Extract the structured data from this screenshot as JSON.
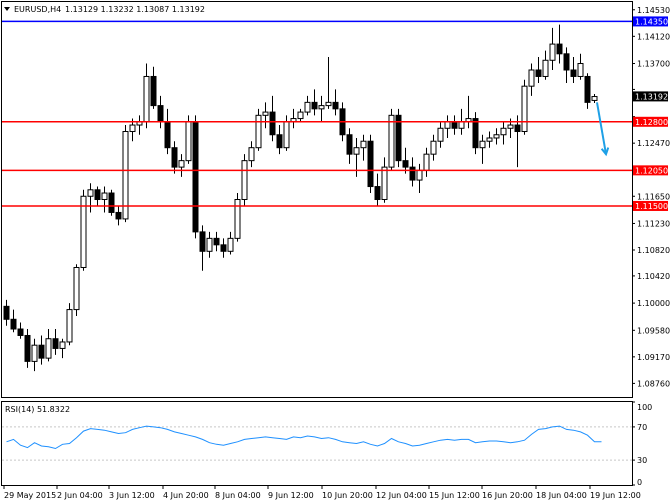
{
  "header": {
    "symbol": "EURUSD,H4",
    "ohlc": "1.13129 1.13232 1.13087 1.13192"
  },
  "rsi_header": "RSI(14) 51.8322",
  "colors": {
    "background": "#ffffff",
    "bull_candle": "#ffffff",
    "bear_candle": "#000000",
    "level_line": "#ff0000",
    "top_line": "#0000ff",
    "rsi_line": "#1e90ff",
    "arrow": "#1ea0e6",
    "grid": "#c8c8c8",
    "current_price_badge": "#000000"
  },
  "chart_data": [
    {
      "type": "candlestick",
      "title": "EURUSD,H4",
      "ylim": [
        1.0855,
        1.1465
      ],
      "y_ticks": [
        "1.14530",
        "1.14120",
        "1.13700",
        "1.13300",
        "1.12880",
        "1.12470",
        "1.12050",
        "1.11650",
        "1.11230",
        "1.10820",
        "1.10420",
        "1.10000",
        "1.09580",
        "1.09170",
        "1.08760"
      ],
      "x_ticks": [
        "29 May 2015",
        "2 Jun 04:00",
        "3 Jun 12:00",
        "4 Jun 20:00",
        "8 Jun 04:00",
        "9 Jun 12:00",
        "10 Jun 20:00",
        "12 Jun 04:00",
        "15 Jun 12:00",
        "16 Jun 20:00",
        "18 Jun 04:00",
        "19 Jun 12:00"
      ],
      "horizontal_levels": [
        {
          "value": 1.1435,
          "label": "1.14350",
          "color": "#0000ff"
        },
        {
          "value": 1.128,
          "label": "1.12800",
          "color": "#ff0000"
        },
        {
          "value": 1.1205,
          "label": "1.12050",
          "color": "#ff0000"
        },
        {
          "value": 1.115,
          "label": "1.11500",
          "color": "#ff0000"
        }
      ],
      "current_price": {
        "value": 1.13192,
        "label": "1.13192"
      },
      "arrow": {
        "from": [
          84,
          1.131
        ],
        "to": [
          86,
          1.123
        ]
      },
      "candles": [
        [
          1.0995,
          1.1005,
          1.0965,
          1.0975
        ],
        [
          1.0975,
          1.099,
          1.0955,
          1.096
        ],
        [
          1.096,
          1.097,
          1.0945,
          1.095
        ],
        [
          1.095,
          1.096,
          1.09,
          1.091
        ],
        [
          1.091,
          1.0945,
          1.0895,
          1.0935
        ],
        [
          1.0935,
          1.095,
          1.0905,
          1.0915
        ],
        [
          1.0915,
          1.096,
          1.091,
          1.0945
        ],
        [
          1.0945,
          1.096,
          1.092,
          1.093
        ],
        [
          1.093,
          1.0945,
          1.0915,
          1.094
        ],
        [
          1.094,
          1.1,
          1.0935,
          1.099
        ],
        [
          1.099,
          1.106,
          1.098,
          1.1055
        ],
        [
          1.1055,
          1.1175,
          1.105,
          1.1165
        ],
        [
          1.1165,
          1.1185,
          1.114,
          1.1175
        ],
        [
          1.1175,
          1.118,
          1.115,
          1.116
        ],
        [
          1.116,
          1.118,
          1.114,
          1.117
        ],
        [
          1.117,
          1.1175,
          1.1135,
          1.114
        ],
        [
          1.114,
          1.115,
          1.112,
          1.113
        ],
        [
          1.113,
          1.1275,
          1.1125,
          1.1265
        ],
        [
          1.1265,
          1.1285,
          1.125,
          1.1275
        ],
        [
          1.1275,
          1.129,
          1.126,
          1.128
        ],
        [
          1.128,
          1.137,
          1.127,
          1.135
        ],
        [
          1.135,
          1.1365,
          1.13,
          1.1305
        ],
        [
          1.1305,
          1.132,
          1.127,
          1.128
        ],
        [
          1.128,
          1.13,
          1.123,
          1.124
        ],
        [
          1.124,
          1.125,
          1.12,
          1.121
        ],
        [
          1.121,
          1.123,
          1.1195,
          1.122
        ],
        [
          1.122,
          1.129,
          1.1215,
          1.128
        ],
        [
          1.128,
          1.129,
          1.11,
          1.111
        ],
        [
          1.111,
          1.112,
          1.105,
          1.108
        ],
        [
          1.108,
          1.111,
          1.107,
          1.11
        ],
        [
          1.11,
          1.111,
          1.108,
          1.109
        ],
        [
          1.109,
          1.11,
          1.107,
          1.108
        ],
        [
          1.108,
          1.111,
          1.1075,
          1.11
        ],
        [
          1.11,
          1.117,
          1.1095,
          1.116
        ],
        [
          1.116,
          1.123,
          1.115,
          1.122
        ],
        [
          1.122,
          1.125,
          1.121,
          1.124
        ],
        [
          1.124,
          1.13,
          1.1235,
          1.129
        ],
        [
          1.129,
          1.131,
          1.127,
          1.1295
        ],
        [
          1.1295,
          1.132,
          1.125,
          1.126
        ],
        [
          1.126,
          1.1275,
          1.123,
          1.124
        ],
        [
          1.124,
          1.129,
          1.1235,
          1.128
        ],
        [
          1.128,
          1.13,
          1.127,
          1.1285
        ],
        [
          1.1285,
          1.13,
          1.128,
          1.1295
        ],
        [
          1.1295,
          1.132,
          1.129,
          1.131
        ],
        [
          1.131,
          1.133,
          1.129,
          1.13
        ],
        [
          1.13,
          1.132,
          1.128,
          1.1305
        ],
        [
          1.1305,
          1.138,
          1.13,
          1.131
        ],
        [
          1.131,
          1.133,
          1.129,
          1.13
        ],
        [
          1.13,
          1.131,
          1.125,
          1.126
        ],
        [
          1.126,
          1.127,
          1.1215,
          1.123
        ],
        [
          1.123,
          1.1255,
          1.1195,
          1.124
        ],
        [
          1.124,
          1.126,
          1.122,
          1.125
        ],
        [
          1.125,
          1.126,
          1.117,
          1.118
        ],
        [
          1.118,
          1.12,
          1.115,
          1.116
        ],
        [
          1.116,
          1.1225,
          1.1155,
          1.121
        ],
        [
          1.121,
          1.13,
          1.1205,
          1.129
        ],
        [
          1.129,
          1.13,
          1.121,
          1.122
        ],
        [
          1.122,
          1.124,
          1.12,
          1.121
        ],
        [
          1.121,
          1.1225,
          1.118,
          1.119
        ],
        [
          1.119,
          1.1215,
          1.117,
          1.1205
        ],
        [
          1.1205,
          1.124,
          1.1195,
          1.123
        ],
        [
          1.123,
          1.126,
          1.122,
          1.125
        ],
        [
          1.125,
          1.128,
          1.124,
          1.127
        ],
        [
          1.127,
          1.129,
          1.1255,
          1.128
        ],
        [
          1.128,
          1.129,
          1.126,
          1.127
        ],
        [
          1.127,
          1.13,
          1.126,
          1.128
        ],
        [
          1.128,
          1.132,
          1.127,
          1.1285
        ],
        [
          1.1285,
          1.1295,
          1.123,
          1.124
        ],
        [
          1.124,
          1.126,
          1.1215,
          1.125
        ],
        [
          1.125,
          1.1265,
          1.124,
          1.1255
        ],
        [
          1.1255,
          1.127,
          1.1245,
          1.126
        ],
        [
          1.126,
          1.128,
          1.1245,
          1.127
        ],
        [
          1.127,
          1.1285,
          1.1255,
          1.1275
        ],
        [
          1.1275,
          1.129,
          1.121,
          1.1265
        ],
        [
          1.1265,
          1.1345,
          1.126,
          1.1335
        ],
        [
          1.1335,
          1.137,
          1.132,
          1.136
        ],
        [
          1.136,
          1.138,
          1.134,
          1.135
        ],
        [
          1.135,
          1.139,
          1.1345,
          1.1375
        ],
        [
          1.1375,
          1.1425,
          1.136,
          1.14
        ],
        [
          1.14,
          1.143,
          1.137,
          1.1385
        ],
        [
          1.1385,
          1.1395,
          1.134,
          1.136
        ],
        [
          1.136,
          1.138,
          1.134,
          1.135
        ],
        [
          1.135,
          1.1385,
          1.1345,
          1.137
        ],
        [
          1.135,
          1.1355,
          1.13,
          1.131
        ],
        [
          1.1313,
          1.1323,
          1.1309,
          1.1319
        ]
      ]
    },
    {
      "type": "line",
      "title": "RSI(14) 51.8322",
      "ylim": [
        0,
        100
      ],
      "y_ticks": [
        "100",
        "70",
        "30",
        "0"
      ],
      "levels": [
        70,
        30
      ],
      "series": [
        {
          "values": [
            52,
            55,
            48,
            45,
            51,
            47,
            46,
            44,
            49,
            50,
            57,
            65,
            68,
            67,
            66,
            64,
            62,
            63,
            67,
            69,
            71,
            70,
            69,
            67,
            64,
            62,
            60,
            58,
            55,
            51,
            49,
            48,
            50,
            52,
            55,
            56,
            57,
            58,
            57,
            56,
            55,
            58,
            57,
            59,
            58,
            56,
            57,
            55,
            52,
            51,
            50,
            52,
            49,
            47,
            50,
            56,
            52,
            50,
            47,
            48,
            50,
            52,
            54,
            55,
            54,
            55,
            55,
            51,
            52,
            53,
            53,
            52,
            51,
            52,
            54,
            61,
            67,
            68,
            70,
            71,
            67,
            66,
            64,
            60,
            52,
            52
          ]
        }
      ]
    }
  ]
}
